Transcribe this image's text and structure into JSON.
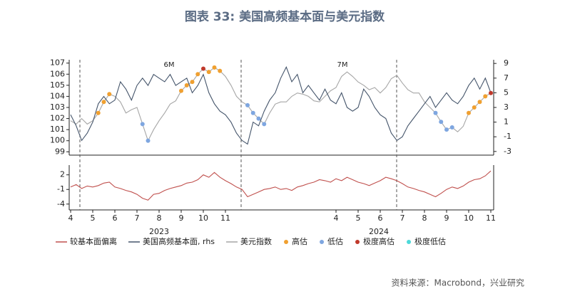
{
  "chart_data": {
    "type": "line",
    "title": "图表 33: 美国高频基本面与美元指数",
    "source": "资料来源：Macrobond，兴业研究",
    "annotations": [
      "6M",
      "7M"
    ],
    "year_labels": [
      "2023",
      "2024"
    ],
    "categories": [
      "4",
      null,
      null,
      null,
      "5",
      null,
      null,
      null,
      "6",
      null,
      null,
      null,
      "7",
      null,
      null,
      null,
      "8",
      null,
      null,
      null,
      "9",
      null,
      null,
      null,
      "10",
      null,
      null,
      null,
      "11",
      null,
      null,
      null,
      null,
      null,
      null,
      null,
      null,
      null,
      null,
      null,
      null,
      null,
      null,
      null,
      null,
      null,
      null,
      null,
      "4",
      null,
      null,
      null,
      "5",
      null,
      null,
      null,
      "6",
      null,
      null,
      null,
      "7",
      null,
      null,
      null,
      "8",
      null,
      null,
      null,
      "9",
      null,
      null,
      null,
      "10",
      null,
      null,
      null,
      "11"
    ],
    "ylim": [
      98.7,
      107.3
    ],
    "yticks": [
      99,
      100,
      101,
      102,
      103,
      104,
      105,
      106,
      107
    ],
    "y2lim": [
      -3.5,
      9.5
    ],
    "y2ticks": [
      -3,
      -1,
      1,
      3,
      5,
      7,
      9
    ],
    "y3lim": [
      -5.2,
      4
    ],
    "y3ticks": [
      2,
      -1,
      -4
    ],
    "series": [
      {
        "name": "较基本面偏离",
        "color": "#c0504d",
        "axis": "y3",
        "type": "line",
        "values": [
          -0.5,
          0,
          -0.8,
          -0.3,
          -0.5,
          -0.2,
          0.3,
          0.5,
          -0.5,
          -0.8,
          -1.2,
          -1.5,
          -2.0,
          -2.8,
          -3.2,
          -2.0,
          -1.8,
          -1.2,
          -0.8,
          -0.5,
          -0.2,
          0.3,
          0.5,
          1.0,
          2.0,
          1.5,
          2.5,
          1.5,
          0.8,
          0.2,
          -0.5,
          -1.0,
          -2.5,
          -2.0,
          -1.5,
          -1.0,
          -0.8,
          -0.5,
          -1.0,
          -0.8,
          -1.2,
          -0.5,
          -0.2,
          0.2,
          0.5,
          1.0,
          0.8,
          0.5,
          1.2,
          0.8,
          1.5,
          1.0,
          0.5,
          0.2,
          -0.2,
          0.3,
          0.8,
          1.5,
          1.2,
          0.8,
          0.2,
          -0.5,
          -0.8,
          -1.2,
          -1.5,
          -2.0,
          -2.5,
          -1.8,
          -1.0,
          -0.5,
          -0.8,
          -0.3,
          0.5,
          1.0,
          1.2,
          1.8,
          2.8
        ]
      },
      {
        "name": "美国高频基本面, rhs",
        "color": "#44546a",
        "axis": "y2",
        "type": "line",
        "values": [
          2.0,
          0.5,
          -1.5,
          -0.5,
          1.0,
          3.5,
          4.5,
          3.5,
          4.0,
          6.5,
          5.5,
          4.0,
          6.0,
          7.0,
          6.0,
          7.5,
          7.0,
          6.5,
          7.5,
          6.0,
          6.5,
          7.0,
          5.0,
          6.0,
          7.5,
          5.0,
          3.5,
          2.5,
          2.0,
          1.0,
          -0.5,
          -1.5,
          -2.0,
          1.0,
          0.5,
          2.5,
          4.0,
          5.0,
          7.0,
          8.5,
          6.5,
          7.5,
          5.0,
          6.0,
          5.0,
          4.0,
          5.5,
          4.0,
          3.5,
          5.0,
          3.0,
          2.5,
          3.0,
          5.5,
          4.5,
          3.0,
          2.0,
          1.5,
          -0.5,
          -1.5,
          -1.0,
          0.5,
          1.5,
          2.5,
          3.5,
          4.5,
          3.0,
          4.0,
          5.0,
          4.0,
          3.5,
          4.5,
          6.0,
          7.0,
          5.5,
          7.0,
          5.0
        ]
      },
      {
        "name": "美元指数",
        "color": "#a6a6a6",
        "axis": "y",
        "type": "line",
        "values": [
          101.8,
          101.5,
          102.0,
          101.5,
          101.8,
          102.5,
          103.5,
          104.2,
          104.0,
          103.5,
          102.5,
          102.8,
          103.0,
          101.5,
          100.0,
          101.0,
          101.8,
          102.5,
          103.3,
          103.6,
          104.5,
          105.0,
          105.3,
          106.0,
          106.5,
          106.2,
          106.6,
          106.3,
          105.8,
          105.0,
          104.0,
          103.5,
          103.2,
          102.5,
          102.0,
          101.5,
          102.5,
          103.3,
          103.5,
          103.5,
          104.0,
          104.3,
          104.2,
          104.0,
          103.6,
          103.5,
          104.0,
          104.5,
          104.8,
          105.8,
          106.2,
          105.8,
          105.3,
          105.0,
          104.6,
          104.8,
          104.3,
          104.8,
          105.6,
          105.9,
          105.2,
          104.6,
          104.3,
          104.3,
          103.5,
          103.0,
          102.5,
          101.7,
          101.0,
          101.2,
          100.8,
          101.3,
          102.5,
          103.0,
          103.5,
          104.0,
          104.3
        ]
      },
      {
        "name": "高估",
        "color": "#f0a030",
        "axis": "y",
        "type": "scatter",
        "values": [
          null,
          null,
          null,
          null,
          null,
          102.5,
          103.5,
          104.2,
          null,
          null,
          null,
          null,
          null,
          null,
          null,
          null,
          null,
          null,
          null,
          null,
          104.5,
          105.0,
          105.3,
          106.0,
          null,
          106.2,
          106.6,
          106.3,
          null,
          null,
          null,
          null,
          null,
          null,
          null,
          null,
          null,
          null,
          null,
          null,
          null,
          null,
          null,
          null,
          null,
          null,
          null,
          null,
          null,
          null,
          null,
          null,
          null,
          null,
          null,
          null,
          null,
          null,
          null,
          null,
          null,
          null,
          null,
          null,
          null,
          null,
          null,
          null,
          null,
          null,
          null,
          null,
          102.5,
          103.0,
          103.5,
          104.0,
          null
        ]
      },
      {
        "name": "低估",
        "color": "#7ea6e0",
        "axis": "y",
        "type": "scatter",
        "values": [
          null,
          null,
          null,
          null,
          null,
          null,
          null,
          null,
          null,
          null,
          null,
          null,
          null,
          101.5,
          100.0,
          null,
          null,
          null,
          null,
          null,
          null,
          null,
          null,
          null,
          null,
          null,
          null,
          null,
          null,
          null,
          null,
          null,
          103.2,
          102.5,
          102.0,
          101.5,
          null,
          null,
          null,
          null,
          null,
          null,
          null,
          null,
          null,
          null,
          null,
          null,
          null,
          null,
          null,
          null,
          null,
          null,
          null,
          null,
          null,
          null,
          null,
          null,
          null,
          null,
          null,
          null,
          null,
          null,
          102.5,
          101.7,
          101.0,
          101.2,
          null,
          null,
          null,
          null,
          null,
          null,
          null
        ]
      },
      {
        "name": "极度高估",
        "color": "#c0392b",
        "axis": "y",
        "type": "scatter",
        "values": [
          null,
          null,
          null,
          null,
          null,
          null,
          null,
          null,
          null,
          null,
          null,
          null,
          null,
          null,
          null,
          null,
          null,
          null,
          null,
          null,
          null,
          null,
          null,
          null,
          106.5,
          null,
          null,
          null,
          null,
          null,
          null,
          null,
          null,
          null,
          null,
          null,
          null,
          null,
          null,
          null,
          null,
          null,
          null,
          null,
          null,
          null,
          null,
          null,
          null,
          null,
          null,
          null,
          null,
          null,
          null,
          null,
          null,
          null,
          null,
          null,
          null,
          null,
          null,
          null,
          null,
          null,
          null,
          null,
          null,
          null,
          null,
          null,
          null,
          null,
          null,
          null,
          104.3
        ]
      },
      {
        "name": "极度低估",
        "color": "#4dd9d9",
        "axis": "y",
        "type": "scatter",
        "values": [
          null,
          null,
          null,
          null,
          null,
          null,
          null,
          null,
          null,
          null,
          null,
          null,
          null,
          null,
          null,
          null,
          null,
          null,
          null,
          null,
          null,
          null,
          null,
          null,
          null,
          null,
          null,
          null,
          null,
          null,
          null,
          null,
          null,
          null,
          null,
          null,
          null,
          null,
          null,
          null,
          null,
          null,
          null,
          null,
          null,
          null,
          null,
          null,
          null,
          null,
          null,
          null,
          null,
          null,
          null,
          null,
          null,
          null,
          null,
          null,
          null,
          null,
          null,
          null,
          null,
          null,
          null,
          null,
          null,
          null,
          null,
          null,
          null,
          null,
          null,
          null,
          null
        ]
      }
    ]
  }
}
